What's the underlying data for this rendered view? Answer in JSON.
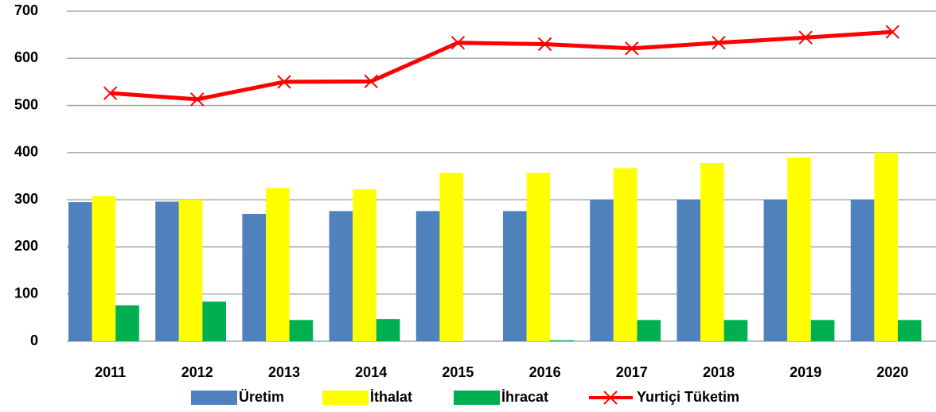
{
  "chart_data": {
    "type": "bar",
    "categories": [
      "2011",
      "2012",
      "2013",
      "2014",
      "2015",
      "2016",
      "2017",
      "2018",
      "2019",
      "2020"
    ],
    "series": [
      {
        "name": "Üretim",
        "color": "#4f81bd",
        "values": [
          295,
          296,
          270,
          276,
          276,
          276,
          300,
          300,
          300,
          300
        ]
      },
      {
        "name": "İthalat",
        "color": "#ffff00",
        "values": [
          308,
          300,
          325,
          322,
          357,
          357,
          367,
          378,
          390,
          400
        ]
      },
      {
        "name": "İhracat",
        "color": "#00b050",
        "values": [
          76,
          84,
          45,
          47,
          0,
          2,
          45,
          45,
          45,
          45
        ]
      },
      {
        "name": "Yurtiçi Tüketim",
        "color": "#ff0000",
        "type": "line",
        "values": [
          526,
          513,
          550,
          551,
          633,
          630,
          621,
          633,
          644,
          656
        ]
      }
    ],
    "ylim": [
      0,
      700
    ],
    "yticks": [
      0,
      100,
      200,
      300,
      400,
      500,
      600,
      700
    ],
    "grid": true
  }
}
